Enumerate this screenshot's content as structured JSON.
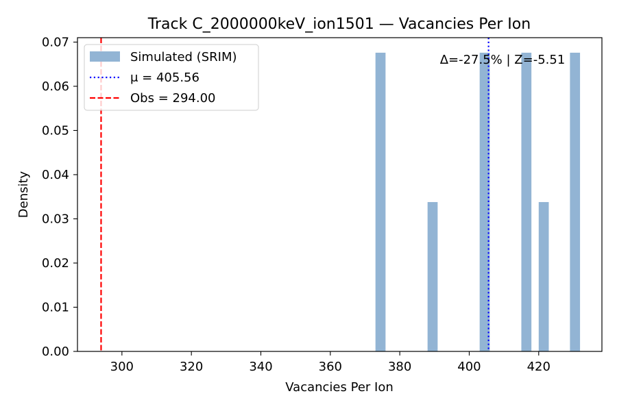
{
  "chart_data": {
    "type": "bar",
    "title": "Track C_2000000keV_ion1501 — Vacancies Per Ion",
    "xlabel": "Vacancies Per Ion",
    "ylabel": "Density",
    "xlim": [
      287.2,
      438.2
    ],
    "ylim": [
      0,
      0.071
    ],
    "xticks": [
      300,
      320,
      340,
      360,
      380,
      400,
      420
    ],
    "yticks": [
      0.0,
      0.01,
      0.02,
      0.03,
      0.04,
      0.05,
      0.06,
      0.07
    ],
    "xtick_labels": [
      "300",
      "320",
      "340",
      "360",
      "380",
      "400",
      "420"
    ],
    "ytick_labels": [
      "0.00",
      "0.01",
      "0.02",
      "0.03",
      "0.04",
      "0.05",
      "0.06",
      "0.07"
    ],
    "grid": false,
    "legend_position": "top-left",
    "series": [
      {
        "name": "Simulated (SRIM)",
        "kind": "histogram",
        "color": "#92b4d4",
        "bins": [
          {
            "x0": 373.0,
            "x1": 375.9,
            "value": 0.0676
          },
          {
            "x0": 388.0,
            "x1": 390.9,
            "value": 0.0338
          },
          {
            "x0": 403.0,
            "x1": 405.9,
            "value": 0.0676
          },
          {
            "x0": 415.0,
            "x1": 417.9,
            "value": 0.0676
          },
          {
            "x0": 420.0,
            "x1": 422.9,
            "value": 0.0338
          },
          {
            "x0": 429.0,
            "x1": 431.9,
            "value": 0.0676
          }
        ]
      },
      {
        "name": "μ = 405.56",
        "kind": "vline",
        "x": 405.56,
        "color": "#0000ff",
        "style": "dotted"
      },
      {
        "name": "Obs = 294.00",
        "kind": "vline",
        "x": 294.0,
        "color": "#ff0000",
        "style": "dashed"
      }
    ],
    "annotation": "Δ=-27.5% | Z=-5.51"
  }
}
